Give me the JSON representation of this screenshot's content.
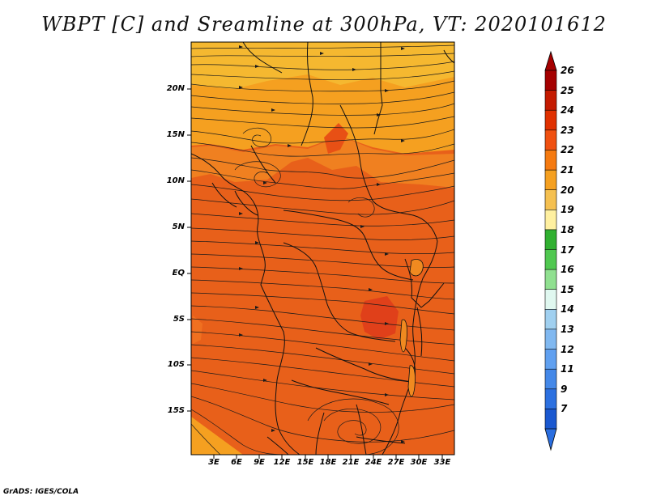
{
  "title": "WBPT [C] and Sreamline at 300hPa, VT: 2020101612",
  "credit": "GrADS: IGES/COLA",
  "y_axis_labels": [
    "20N",
    "15N",
    "10N",
    "5N",
    "EQ",
    "5S",
    "10S",
    "15S"
  ],
  "x_axis_labels": [
    "3E",
    "6E",
    "9E",
    "12E",
    "15E",
    "18E",
    "21E",
    "24E",
    "27E",
    "30E",
    "33E"
  ],
  "colorbar": {
    "labels": [
      "26",
      "25",
      "24",
      "23",
      "22",
      "21",
      "20",
      "19",
      "18",
      "17",
      "16",
      "15",
      "14",
      "13",
      "12",
      "11",
      "9",
      "7"
    ],
    "colors": [
      "#a50000",
      "#c41a00",
      "#e03000",
      "#f05010",
      "#f57a10",
      "#f5a020",
      "#f5c050",
      "#fff0a0",
      "#30b030",
      "#50c850",
      "#90e090",
      "#e0f8f0",
      "#a0d0f0",
      "#80b8f0",
      "#60a0f0",
      "#4488e8",
      "#2c70e0",
      "#1a58d0"
    ]
  },
  "fields": {
    "background": "#e8601a",
    "north_band": "#f5a020",
    "northern_edge": "#f5b830",
    "hot_spot": "#e0401a"
  }
}
